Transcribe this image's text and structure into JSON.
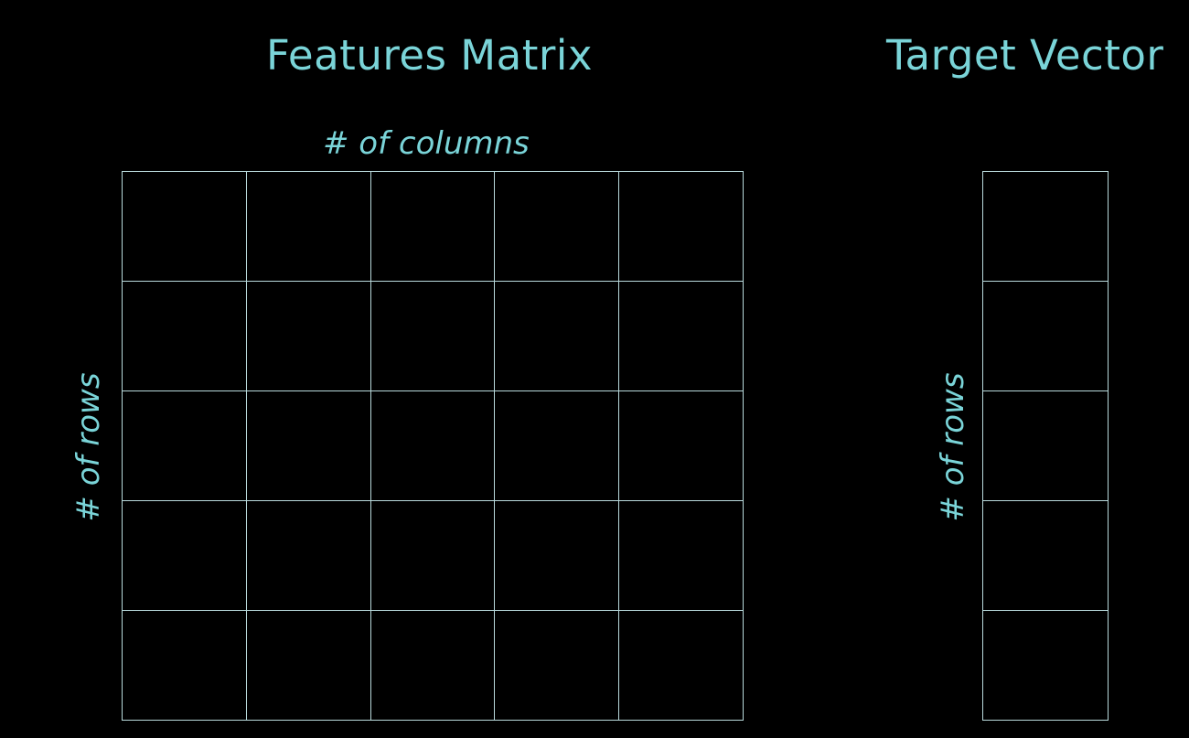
{
  "colors": {
    "accent": "#7ad4d8",
    "line": "#b9dadc",
    "background": "#000000"
  },
  "features": {
    "title": "Features Matrix",
    "columns_label": "# of columns",
    "rows_label": "# of rows",
    "rows": 5,
    "columns": 5
  },
  "target": {
    "title": "Target Vector",
    "rows_label": "# of rows",
    "rows": 5,
    "columns": 1
  }
}
